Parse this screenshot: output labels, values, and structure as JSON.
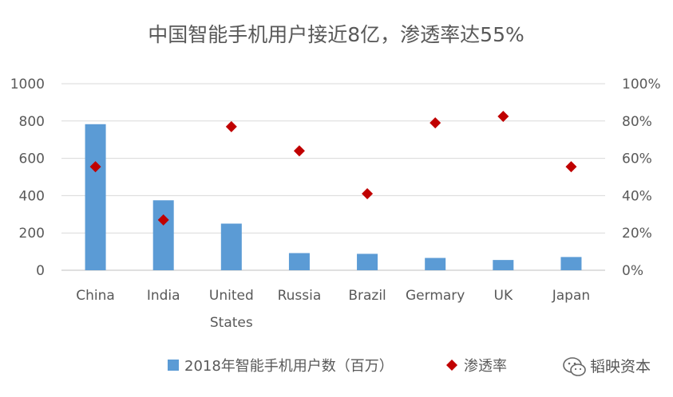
{
  "chart_data": {
    "type": "bar",
    "title": "中国智能手机用户接近8亿，渗透率达55%",
    "categories": [
      "China",
      "India",
      "United States",
      "Russia",
      "Brazil",
      "Germary",
      "UK",
      "Japan"
    ],
    "category_lines": [
      [
        "China"
      ],
      [
        "India"
      ],
      [
        "United",
        "States"
      ],
      [
        "Russia"
      ],
      [
        "Brazil"
      ],
      [
        "Germary"
      ],
      [
        "UK"
      ],
      [
        "Japan"
      ]
    ],
    "series": [
      {
        "name": "2018年智能手机用户数（百万）",
        "type": "bar",
        "axis": "left",
        "values": [
          783,
          375,
          250,
          92,
          88,
          66,
          55,
          71
        ]
      },
      {
        "name": "渗透率",
        "type": "scatter",
        "axis": "right",
        "values": [
          55.5,
          27.0,
          77.0,
          64.0,
          41.0,
          79.0,
          82.5,
          55.5
        ]
      }
    ],
    "ylim_left": [
      0,
      1000
    ],
    "yticks_left": [
      "0",
      "200",
      "400",
      "600",
      "800",
      "1000"
    ],
    "ylim_right": [
      0,
      100
    ],
    "yticks_right": [
      "0%",
      "20%",
      "40%",
      "60%",
      "80%",
      "100%"
    ],
    "grid": true,
    "legend_position": "bottom",
    "colors": {
      "bar": "#5b9bd5",
      "marker": "#c00000",
      "grid": "#d9d9d9",
      "text": "#595959"
    }
  },
  "watermark": {
    "text": "韬映资本",
    "icon": "wechat-icon"
  }
}
